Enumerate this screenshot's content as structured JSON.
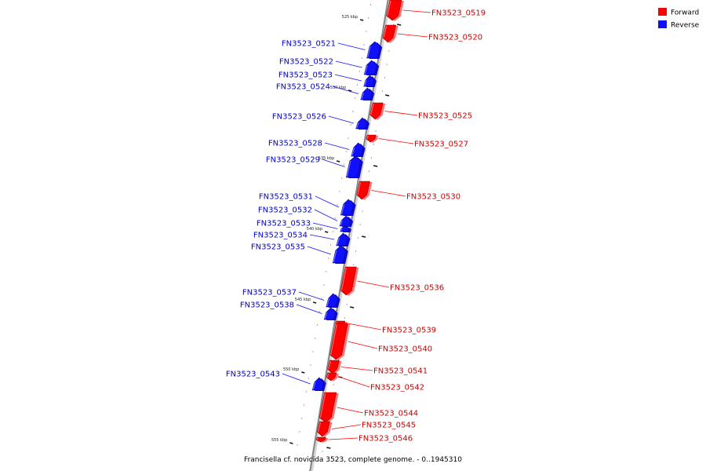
{
  "title": "Francisella cf. novicida 3523, complete genome. - 0..1945310",
  "legend": [
    {
      "label": "Forward",
      "color": "#ff0000"
    },
    {
      "label": "Reverse",
      "color": "#1010ff"
    }
  ],
  "colors": {
    "forward": "#ff0000",
    "reverse": "#1010ff",
    "backbone": "#888888"
  },
  "axis": {
    "kbp_start": 525,
    "kbp_end": 555,
    "tick_labels": [
      "525 kbp",
      "530 kbp",
      "535 kbp",
      "540 kbp",
      "545 kbp",
      "550 kbp",
      "555 kbp"
    ]
  },
  "genes": [
    {
      "name": "FN3523_0519",
      "strand": "forward"
    },
    {
      "name": "FN3523_0520",
      "strand": "forward"
    },
    {
      "name": "FN3523_0521",
      "strand": "reverse"
    },
    {
      "name": "FN3523_0522",
      "strand": "reverse"
    },
    {
      "name": "FN3523_0523",
      "strand": "reverse"
    },
    {
      "name": "FN3523_0524",
      "strand": "reverse"
    },
    {
      "name": "FN3523_0525",
      "strand": "forward"
    },
    {
      "name": "FN3523_0526",
      "strand": "reverse"
    },
    {
      "name": "FN3523_0527",
      "strand": "forward"
    },
    {
      "name": "FN3523_0528",
      "strand": "reverse"
    },
    {
      "name": "FN3523_0529",
      "strand": "reverse"
    },
    {
      "name": "FN3523_0530",
      "strand": "forward"
    },
    {
      "name": "FN3523_0531",
      "strand": "reverse"
    },
    {
      "name": "FN3523_0532",
      "strand": "reverse"
    },
    {
      "name": "FN3523_0533",
      "strand": "reverse"
    },
    {
      "name": "FN3523_0534",
      "strand": "reverse"
    },
    {
      "name": "FN3523_0535",
      "strand": "reverse"
    },
    {
      "name": "FN3523_0536",
      "strand": "forward"
    },
    {
      "name": "FN3523_0537",
      "strand": "reverse"
    },
    {
      "name": "FN3523_0538",
      "strand": "reverse"
    },
    {
      "name": "FN3523_0539",
      "strand": "forward"
    },
    {
      "name": "FN3523_0540",
      "strand": "forward"
    },
    {
      "name": "FN3523_0541",
      "strand": "forward"
    },
    {
      "name": "FN3523_0542",
      "strand": "forward"
    },
    {
      "name": "FN3523_0543",
      "strand": "reverse"
    },
    {
      "name": "FN3523_0544",
      "strand": "forward"
    },
    {
      "name": "FN3523_0545",
      "strand": "forward"
    },
    {
      "name": "FN3523_0546",
      "strand": "forward"
    }
  ]
}
